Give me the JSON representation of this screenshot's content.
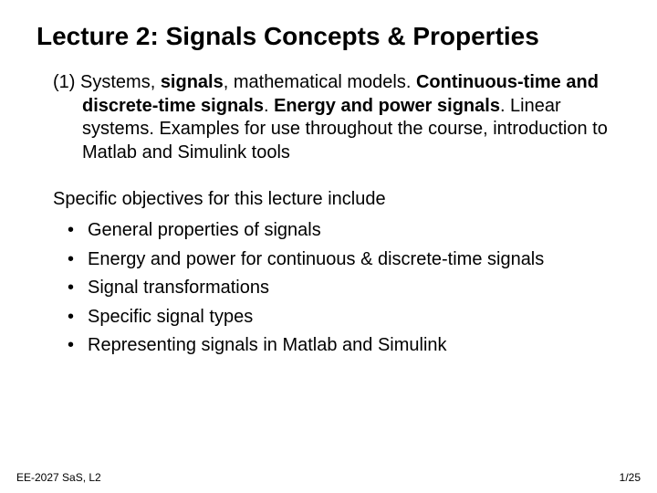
{
  "title": "Lecture 2: Signals Concepts & Properties",
  "paragraph": {
    "number": "(1)",
    "seg1": " Systems, ",
    "seg2_bold": "signals",
    "seg3": ", mathematical models.  ",
    "seg4_bold": "Continuous-time and discrete-time signals",
    "seg5": ".  ",
    "seg6_bold": "Energy and power signals",
    "seg7": ".  Linear systems.  Examples for use throughout the course, introduction to Matlab and Simulink tools"
  },
  "objectives_lead": "Specific objectives for this lecture include",
  "objectives": [
    "General properties of signals",
    "Energy and power for continuous & discrete-time signals",
    "Signal transformations",
    "Specific signal types",
    "Representing signals in Matlab and Simulink"
  ],
  "footer": {
    "left": "EE-2027 SaS, L2",
    "right": "1/25"
  },
  "style": {
    "background_color": "#ffffff",
    "text_color": "#000000",
    "title_fontsize": 28,
    "body_fontsize": 20,
    "footer_fontsize": 12,
    "font_family": "Arial"
  }
}
